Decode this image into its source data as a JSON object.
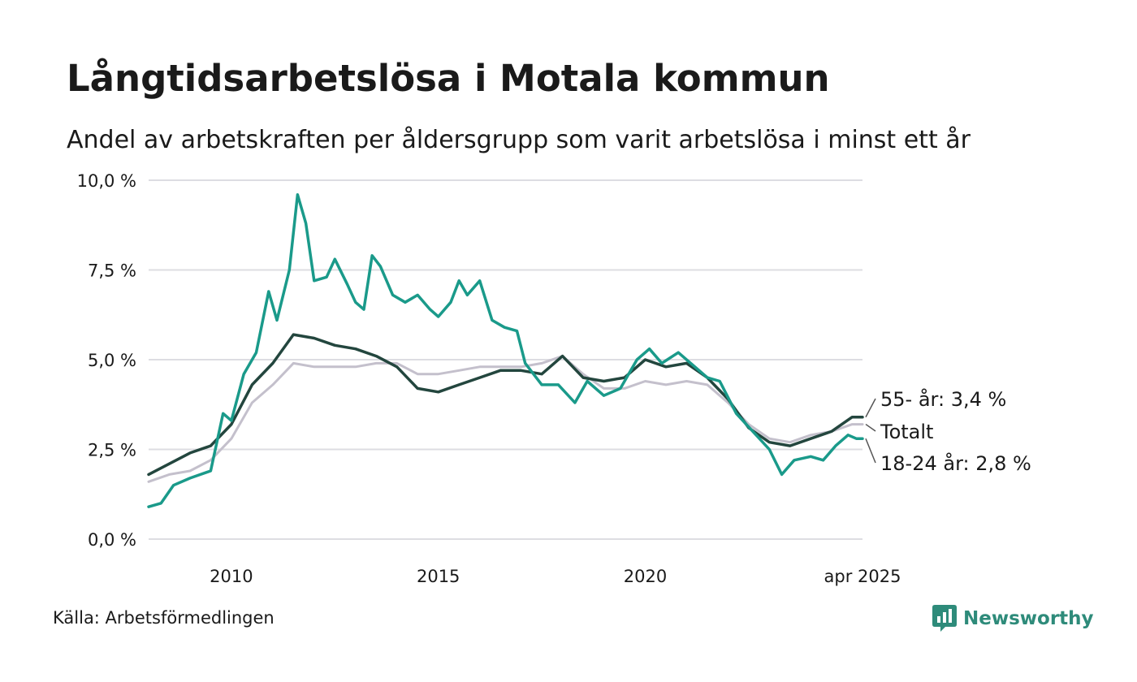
{
  "title": "Långtidsarbetslösa i Motala kommun",
  "subtitle": "Andel av arbetskraften per åldersgrupp som varit arbetslösa i minst ett år",
  "source": "Källa: Arbetsförmedlingen",
  "brand": "Newsworthy",
  "colors": {
    "young": "#1a9a8a",
    "old": "#23463e",
    "total": "#c4c0cc",
    "grid": "#dddde2",
    "brand": "#2e8b7a"
  },
  "chart_data": {
    "type": "line",
    "x_start": 2008.0,
    "x_end": 2025.25,
    "ylim": [
      0,
      10
    ],
    "y_ticks": [
      {
        "value": 0,
        "label": "0,0 %"
      },
      {
        "value": 2.5,
        "label": "2,5 %"
      },
      {
        "value": 5,
        "label": "5,0 %"
      },
      {
        "value": 7.5,
        "label": "7,5 %"
      },
      {
        "value": 10,
        "label": "10,0 %"
      }
    ],
    "x_ticks": [
      {
        "value": 2010,
        "label": "2010"
      },
      {
        "value": 2015,
        "label": "2015"
      },
      {
        "value": 2020,
        "label": "2020"
      },
      {
        "value": 2025.25,
        "label": "apr 2025"
      }
    ],
    "grid": true,
    "legend": "direct-labels-right",
    "series": [
      {
        "name": "Totalt",
        "key": "total",
        "end_label": "Totalt",
        "points": [
          [
            2008.0,
            1.6
          ],
          [
            2008.5,
            1.8
          ],
          [
            2009.0,
            1.9
          ],
          [
            2009.5,
            2.2
          ],
          [
            2010.0,
            2.8
          ],
          [
            2010.5,
            3.8
          ],
          [
            2011.0,
            4.3
          ],
          [
            2011.5,
            4.9
          ],
          [
            2012.0,
            4.8
          ],
          [
            2012.5,
            4.8
          ],
          [
            2013.0,
            4.8
          ],
          [
            2013.5,
            4.9
          ],
          [
            2014.0,
            4.9
          ],
          [
            2014.5,
            4.6
          ],
          [
            2015.0,
            4.6
          ],
          [
            2015.5,
            4.7
          ],
          [
            2016.0,
            4.8
          ],
          [
            2016.5,
            4.8
          ],
          [
            2017.0,
            4.8
          ],
          [
            2017.5,
            4.9
          ],
          [
            2018.0,
            5.1
          ],
          [
            2018.5,
            4.6
          ],
          [
            2019.0,
            4.2
          ],
          [
            2019.5,
            4.2
          ],
          [
            2020.0,
            4.4
          ],
          [
            2020.5,
            4.3
          ],
          [
            2021.0,
            4.4
          ],
          [
            2021.5,
            4.3
          ],
          [
            2022.0,
            3.8
          ],
          [
            2022.5,
            3.2
          ],
          [
            2023.0,
            2.8
          ],
          [
            2023.5,
            2.7
          ],
          [
            2024.0,
            2.9
          ],
          [
            2024.5,
            3.0
          ],
          [
            2025.0,
            3.2
          ],
          [
            2025.25,
            3.2
          ]
        ]
      },
      {
        "name": "55- år",
        "key": "old",
        "end_label": "55- år: 3,4 %",
        "points": [
          [
            2008.0,
            1.8
          ],
          [
            2008.5,
            2.1
          ],
          [
            2009.0,
            2.4
          ],
          [
            2009.5,
            2.6
          ],
          [
            2010.0,
            3.2
          ],
          [
            2010.5,
            4.3
          ],
          [
            2011.0,
            4.9
          ],
          [
            2011.5,
            5.7
          ],
          [
            2012.0,
            5.6
          ],
          [
            2012.5,
            5.4
          ],
          [
            2013.0,
            5.3
          ],
          [
            2013.5,
            5.1
          ],
          [
            2014.0,
            4.8
          ],
          [
            2014.5,
            4.2
          ],
          [
            2015.0,
            4.1
          ],
          [
            2015.5,
            4.3
          ],
          [
            2016.0,
            4.5
          ],
          [
            2016.5,
            4.7
          ],
          [
            2017.0,
            4.7
          ],
          [
            2017.5,
            4.6
          ],
          [
            2018.0,
            5.1
          ],
          [
            2018.5,
            4.5
          ],
          [
            2019.0,
            4.4
          ],
          [
            2019.5,
            4.5
          ],
          [
            2020.0,
            5.0
          ],
          [
            2020.5,
            4.8
          ],
          [
            2021.0,
            4.9
          ],
          [
            2021.5,
            4.5
          ],
          [
            2022.0,
            3.9
          ],
          [
            2022.5,
            3.1
          ],
          [
            2023.0,
            2.7
          ],
          [
            2023.5,
            2.6
          ],
          [
            2024.0,
            2.8
          ],
          [
            2024.5,
            3.0
          ],
          [
            2025.0,
            3.4
          ],
          [
            2025.25,
            3.4
          ]
        ]
      },
      {
        "name": "18-24 år",
        "key": "young",
        "end_label": "18-24 år: 2,8 %",
        "points": [
          [
            2008.0,
            0.9
          ],
          [
            2008.3,
            1.0
          ],
          [
            2008.6,
            1.5
          ],
          [
            2009.0,
            1.7
          ],
          [
            2009.5,
            1.9
          ],
          [
            2009.8,
            3.5
          ],
          [
            2010.0,
            3.3
          ],
          [
            2010.3,
            4.6
          ],
          [
            2010.6,
            5.2
          ],
          [
            2010.9,
            6.9
          ],
          [
            2011.1,
            6.1
          ],
          [
            2011.4,
            7.5
          ],
          [
            2011.6,
            9.6
          ],
          [
            2011.8,
            8.8
          ],
          [
            2012.0,
            7.2
          ],
          [
            2012.3,
            7.3
          ],
          [
            2012.5,
            7.8
          ],
          [
            2012.8,
            7.1
          ],
          [
            2013.0,
            6.6
          ],
          [
            2013.2,
            6.4
          ],
          [
            2013.4,
            7.9
          ],
          [
            2013.6,
            7.6
          ],
          [
            2013.9,
            6.8
          ],
          [
            2014.2,
            6.6
          ],
          [
            2014.5,
            6.8
          ],
          [
            2014.8,
            6.4
          ],
          [
            2015.0,
            6.2
          ],
          [
            2015.3,
            6.6
          ],
          [
            2015.5,
            7.2
          ],
          [
            2015.7,
            6.8
          ],
          [
            2016.0,
            7.2
          ],
          [
            2016.3,
            6.1
          ],
          [
            2016.6,
            5.9
          ],
          [
            2016.9,
            5.8
          ],
          [
            2017.1,
            4.9
          ],
          [
            2017.5,
            4.3
          ],
          [
            2017.9,
            4.3
          ],
          [
            2018.3,
            3.8
          ],
          [
            2018.6,
            4.4
          ],
          [
            2019.0,
            4.0
          ],
          [
            2019.4,
            4.2
          ],
          [
            2019.8,
            5.0
          ],
          [
            2020.1,
            5.3
          ],
          [
            2020.4,
            4.9
          ],
          [
            2020.8,
            5.2
          ],
          [
            2021.2,
            4.8
          ],
          [
            2021.5,
            4.5
          ],
          [
            2021.8,
            4.4
          ],
          [
            2022.2,
            3.5
          ],
          [
            2022.6,
            3.0
          ],
          [
            2023.0,
            2.5
          ],
          [
            2023.3,
            1.8
          ],
          [
            2023.6,
            2.2
          ],
          [
            2024.0,
            2.3
          ],
          [
            2024.3,
            2.2
          ],
          [
            2024.6,
            2.6
          ],
          [
            2024.9,
            2.9
          ],
          [
            2025.1,
            2.8
          ],
          [
            2025.25,
            2.8
          ]
        ]
      }
    ]
  }
}
